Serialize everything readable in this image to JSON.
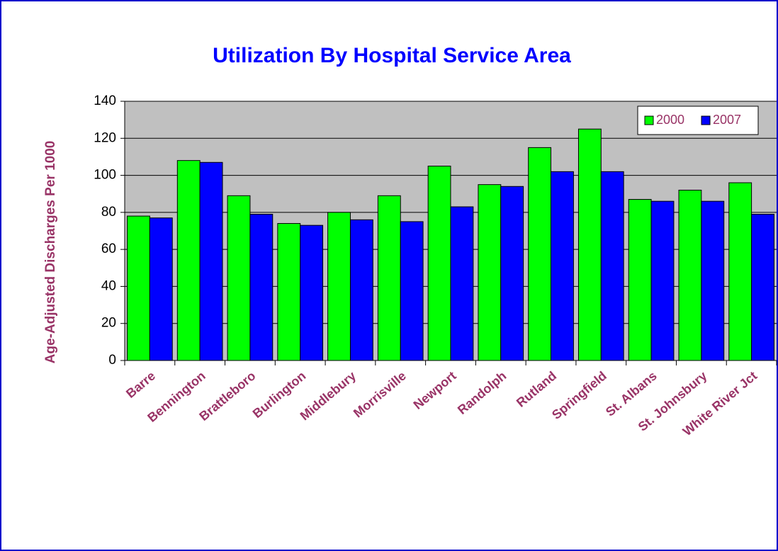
{
  "chart_data": {
    "type": "bar",
    "title": "Utilization By Hospital Service Area",
    "y_axis_label": "Age-Adjusted Discharges Per 1000",
    "categories": [
      "Barre",
      "Bennington",
      "Brattleboro",
      "Burlington",
      "Middlebury",
      "Morrisville",
      "Newport",
      "Randolph",
      "Rutland",
      "Springfield",
      "St. Albans",
      "St. Johnsbury",
      "White River Jct"
    ],
    "series": [
      {
        "name": "2000",
        "color": "#00ff00",
        "values": [
          78,
          108,
          89,
          74,
          80,
          89,
          105,
          95,
          115,
          125,
          87,
          92,
          96
        ]
      },
      {
        "name": "2007",
        "color": "#0000ff",
        "values": [
          77,
          107,
          79,
          73,
          76,
          75,
          83,
          94,
          102,
          102,
          86,
          86,
          79
        ]
      }
    ],
    "ylim": [
      0,
      140
    ],
    "yticks": [
      0,
      20,
      40,
      60,
      80,
      100,
      120,
      140
    ],
    "grid": true,
    "legend_position": "top-right",
    "background": "#c0c0c0"
  }
}
